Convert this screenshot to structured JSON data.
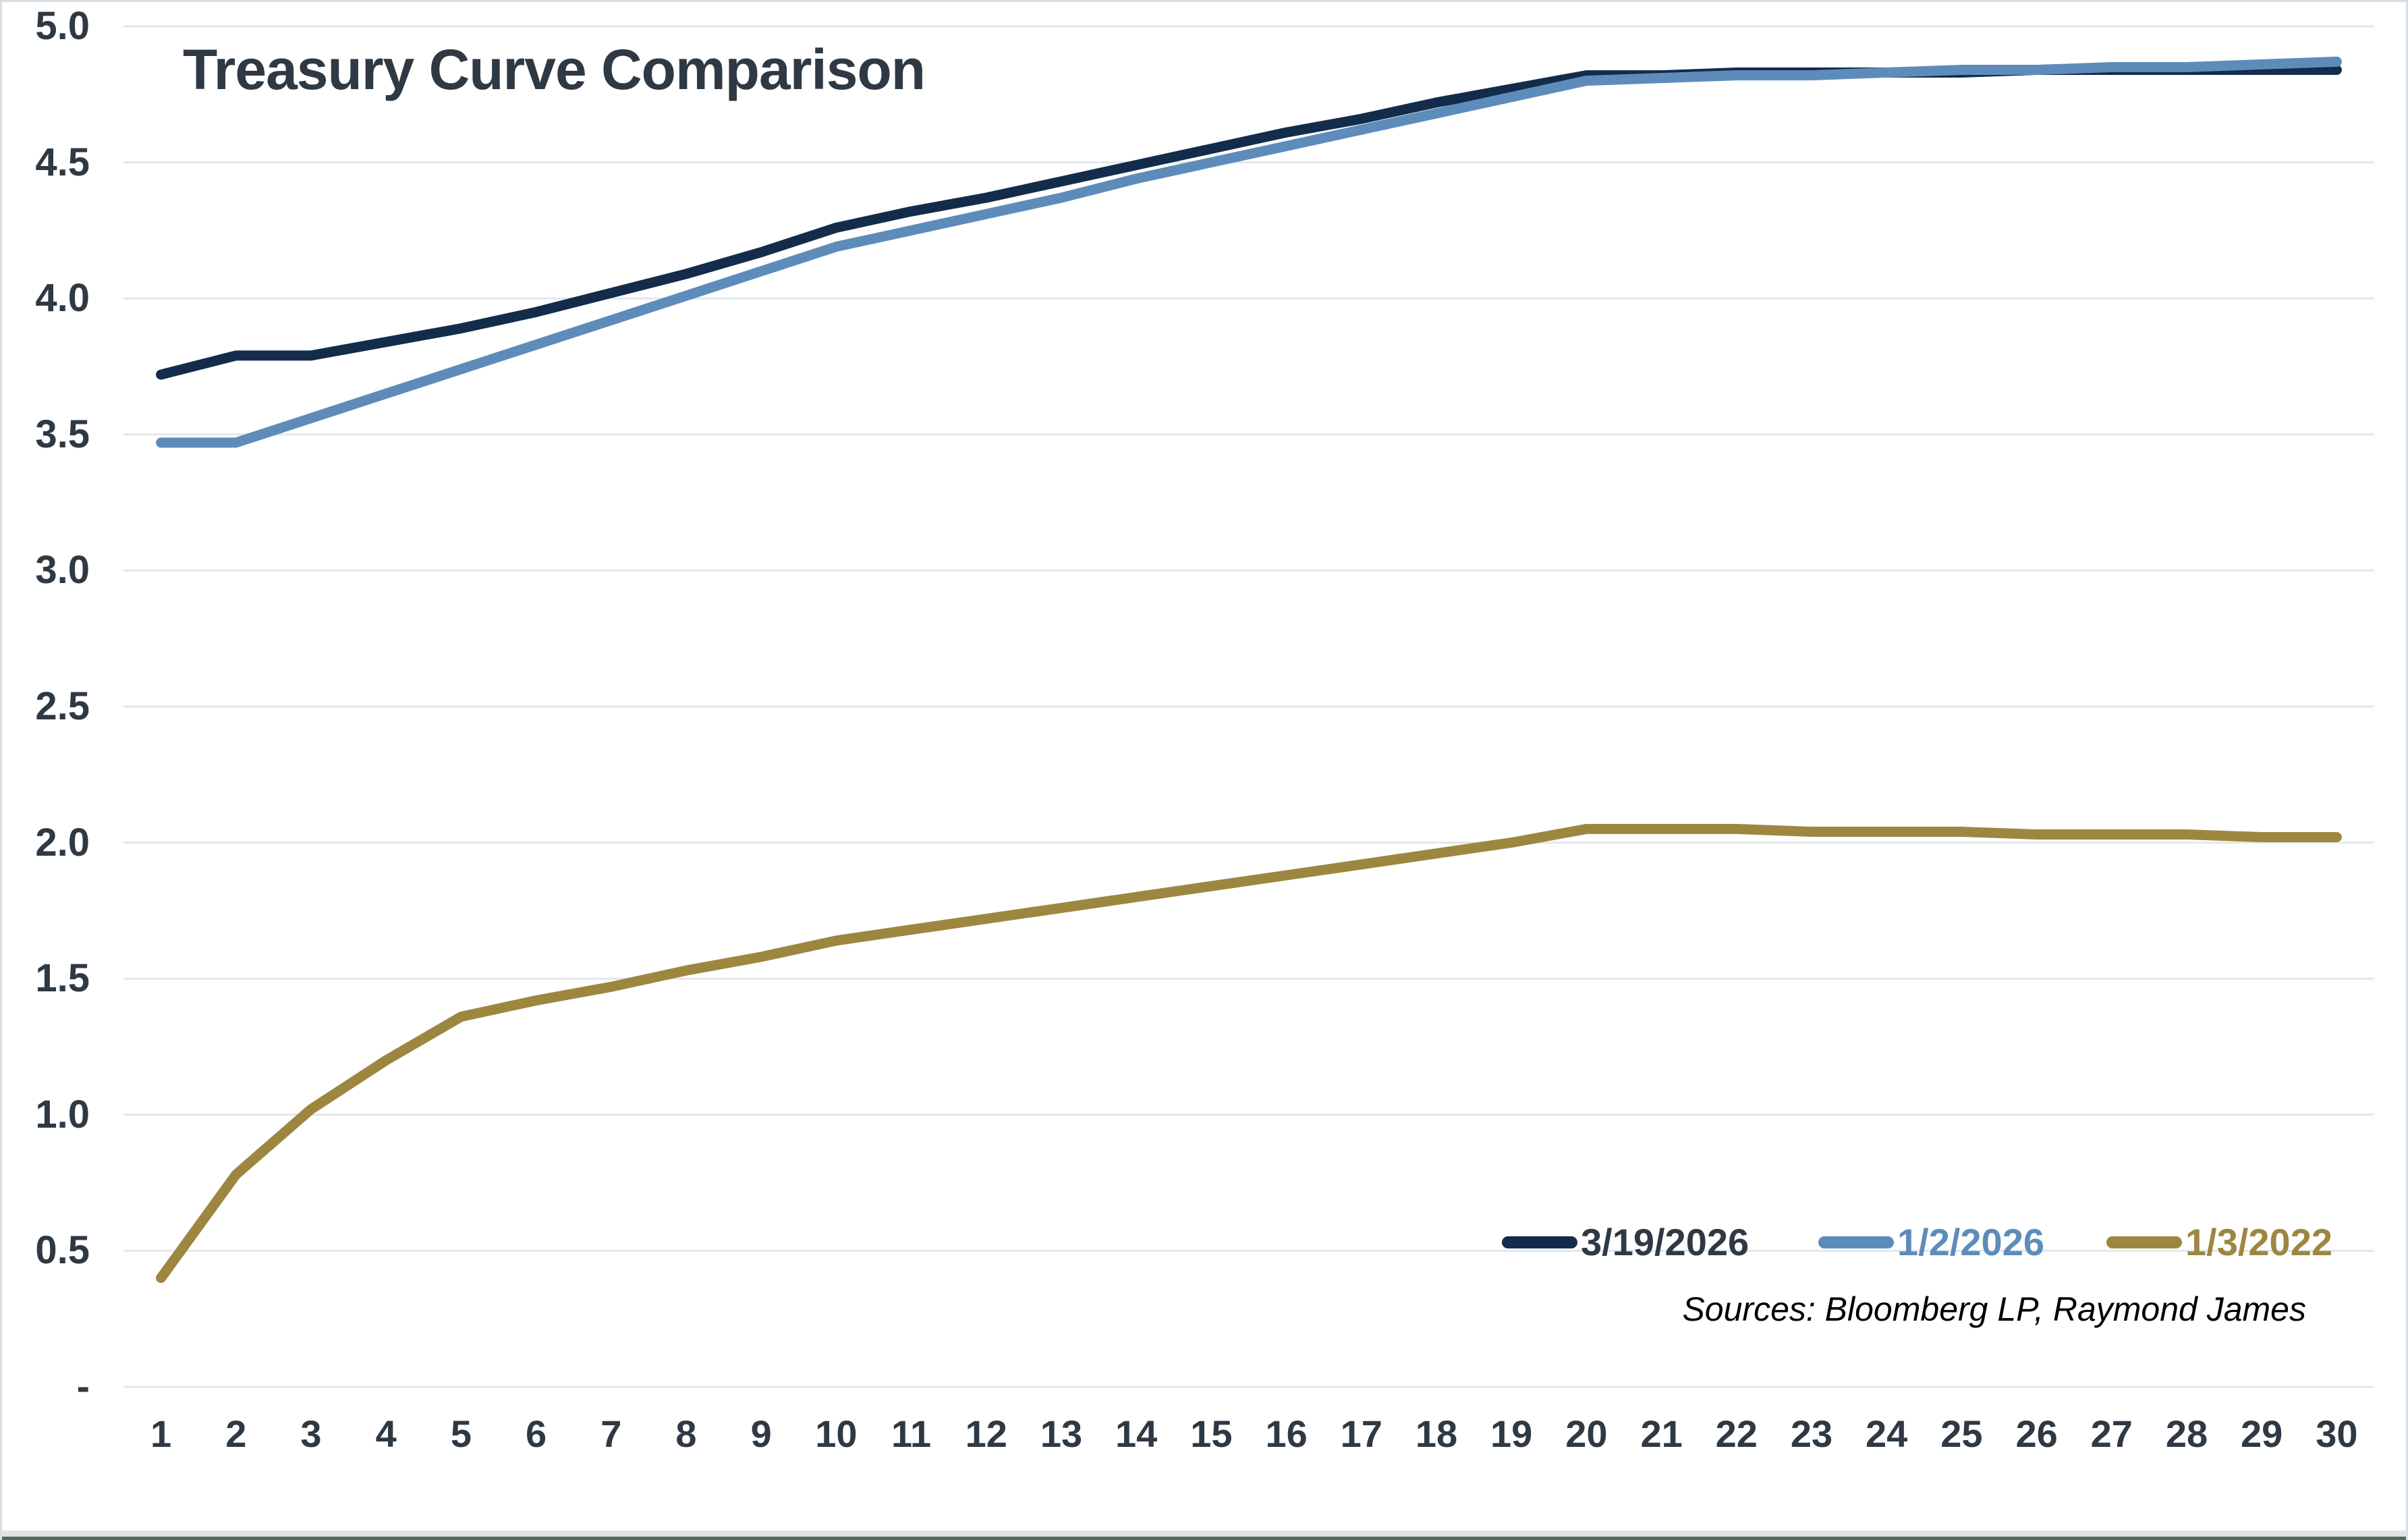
{
  "title": "Treasury Curve Comparison",
  "sources_note": "Sources: Bloomberg LP, Raymond James",
  "colors": {
    "navy": "#132C4B",
    "blue": "#5E8CBA",
    "gold": "#9D8740",
    "text": "#2E3944",
    "gridline": "#E2E7EB",
    "source_text": "#000000",
    "frame_light": "#D9DEE3",
    "frame_bottom_dark": "#56695E"
  },
  "chart_data": {
    "type": "line",
    "title": "Treasury Curve Comparison",
    "xlabel": "",
    "ylabel": "",
    "x": [
      1,
      2,
      3,
      4,
      5,
      6,
      7,
      8,
      9,
      10,
      11,
      12,
      13,
      14,
      15,
      16,
      17,
      18,
      19,
      20,
      21,
      22,
      23,
      24,
      25,
      26,
      27,
      28,
      29,
      30
    ],
    "x_tick_labels": [
      "1",
      "2",
      "3",
      "4",
      "5",
      "6",
      "7",
      "8",
      "9",
      "10",
      "11",
      "12",
      "13",
      "14",
      "15",
      "16",
      "17",
      "18",
      "19",
      "20",
      "21",
      "22",
      "23",
      "24",
      "25",
      "26",
      "27",
      "28",
      "29",
      "30"
    ],
    "y_tick_labels": [
      "5.0",
      "4.5",
      "4.0",
      "3.5",
      "3.0",
      "2.5",
      "2.0",
      "1.5",
      "1.0",
      "0.5",
      "-"
    ],
    "y_tick_values": [
      5.0,
      4.5,
      4.0,
      3.5,
      3.0,
      2.5,
      2.0,
      1.5,
      1.0,
      0.5,
      0.0
    ],
    "ylim": [
      0,
      5.0
    ],
    "grid": "horizontal",
    "legend_position": "inside-bottom-right",
    "series": [
      {
        "name": "3/19/2026",
        "color": "#132C4B",
        "label_color": "#2E3944",
        "values": [
          3.72,
          3.79,
          3.79,
          3.84,
          3.89,
          3.95,
          4.02,
          4.09,
          4.17,
          4.26,
          4.32,
          4.37,
          4.43,
          4.49,
          4.55,
          4.61,
          4.66,
          4.72,
          4.77,
          4.82,
          4.82,
          4.83,
          4.83,
          4.83,
          4.83,
          4.84,
          4.84,
          4.84,
          4.84,
          4.84
        ]
      },
      {
        "name": "1/2/2026",
        "color": "#5E8CBA",
        "label_color": "#5E8CBA",
        "values": [
          3.47,
          3.47,
          3.56,
          3.65,
          3.74,
          3.83,
          3.92,
          4.01,
          4.1,
          4.19,
          4.25,
          4.31,
          4.37,
          4.44,
          4.5,
          4.56,
          4.62,
          4.68,
          4.74,
          4.8,
          4.81,
          4.82,
          4.82,
          4.83,
          4.84,
          4.84,
          4.85,
          4.85,
          4.86,
          4.87
        ]
      },
      {
        "name": "1/3/2022",
        "color": "#9D8740",
        "label_color": "#9D8740",
        "values": [
          0.4,
          0.78,
          1.02,
          1.2,
          1.36,
          1.42,
          1.47,
          1.53,
          1.58,
          1.64,
          1.68,
          1.72,
          1.76,
          1.8,
          1.84,
          1.88,
          1.92,
          1.96,
          2.0,
          2.05,
          2.05,
          2.05,
          2.04,
          2.04,
          2.04,
          2.03,
          2.03,
          2.03,
          2.02,
          2.02
        ]
      }
    ]
  }
}
